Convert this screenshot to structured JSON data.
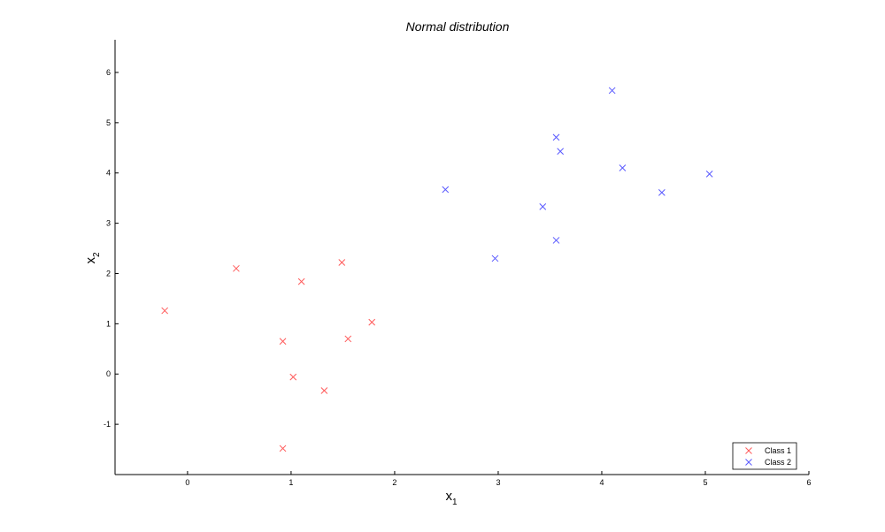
{
  "chart_data": {
    "type": "scatter",
    "title": "Normal distribution",
    "xlabel": {
      "base": "x",
      "sub": "1"
    },
    "ylabel": {
      "base": "x",
      "sub": "2"
    },
    "xlim": [
      -0.7,
      6
    ],
    "ylim": [
      -2,
      6.65
    ],
    "x_ticks": [
      0,
      1,
      2,
      3,
      4,
      5,
      6
    ],
    "y_ticks": [
      -1,
      0,
      1,
      2,
      3,
      4,
      5,
      6
    ],
    "x_tick_labels": [
      "0",
      "1",
      "2",
      "3",
      "4",
      "5",
      "6"
    ],
    "y_tick_labels": [
      "-1",
      "0",
      "1",
      "2",
      "3",
      "4",
      "5",
      "6"
    ],
    "grid": false,
    "legend_position": "bottom-right",
    "marker": "x",
    "series": [
      {
        "name": "Class 1",
        "color": "#ff5a5a",
        "points": [
          [
            -0.22,
            1.26
          ],
          [
            0.47,
            2.1
          ],
          [
            1.1,
            1.84
          ],
          [
            1.49,
            2.22
          ],
          [
            0.92,
            0.65
          ],
          [
            1.55,
            0.7
          ],
          [
            1.78,
            1.03
          ],
          [
            1.02,
            -0.06
          ],
          [
            1.32,
            -0.33
          ],
          [
            0.92,
            -1.48
          ]
        ]
      },
      {
        "name": "Class 2",
        "color": "#5a5aff",
        "points": [
          [
            2.49,
            3.67
          ],
          [
            2.97,
            2.3
          ],
          [
            3.43,
            3.33
          ],
          [
            3.56,
            2.66
          ],
          [
            3.56,
            4.71
          ],
          [
            3.6,
            4.43
          ],
          [
            4.1,
            5.64
          ],
          [
            4.2,
            4.1
          ],
          [
            4.58,
            3.61
          ],
          [
            5.04,
            3.98
          ]
        ]
      }
    ]
  }
}
